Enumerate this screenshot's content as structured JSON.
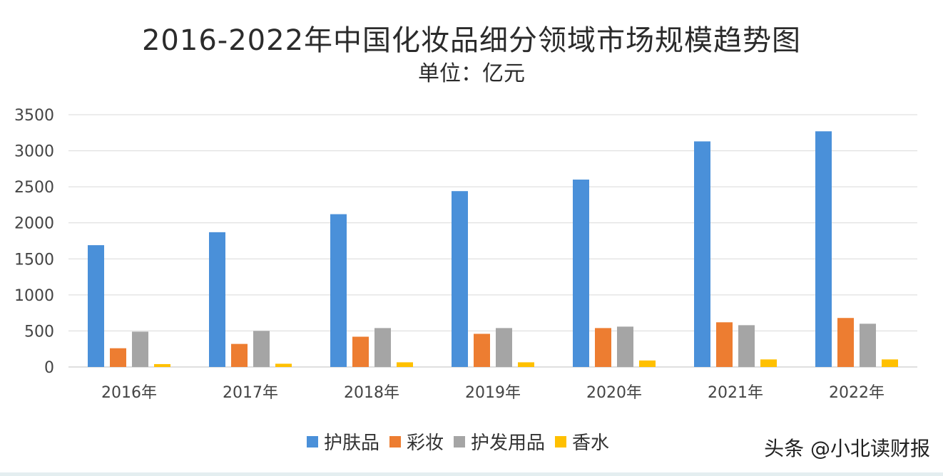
{
  "chart_data": {
    "type": "bar",
    "title": "2016-2022年中国化妆品细分领域市场规模趋势图",
    "subtitle": "单位：亿元",
    "categories": [
      "2016年",
      "2017年",
      "2018年",
      "2019年",
      "2020年",
      "2021年",
      "2022年"
    ],
    "series": [
      {
        "name": "护肤品",
        "color": "#4a90d9",
        "values": [
          1690,
          1870,
          2120,
          2440,
          2600,
          3130,
          3270
        ]
      },
      {
        "name": "彩妆",
        "color": "#ed7d31",
        "values": [
          260,
          320,
          420,
          460,
          540,
          620,
          680
        ]
      },
      {
        "name": "护发用品",
        "color": "#a5a5a5",
        "values": [
          490,
          500,
          540,
          540,
          560,
          580,
          600
        ]
      },
      {
        "name": "香水",
        "color": "#ffc000",
        "values": [
          40,
          45,
          65,
          65,
          90,
          105,
          105
        ]
      }
    ],
    "yticks": [
      "0",
      "500",
      "1000",
      "1500",
      "2000",
      "2500",
      "3000",
      "3500"
    ],
    "ylim": [
      0,
      3500
    ],
    "grid": true,
    "legend_position": "bottom"
  },
  "watermark": "头条 @小北读财报"
}
